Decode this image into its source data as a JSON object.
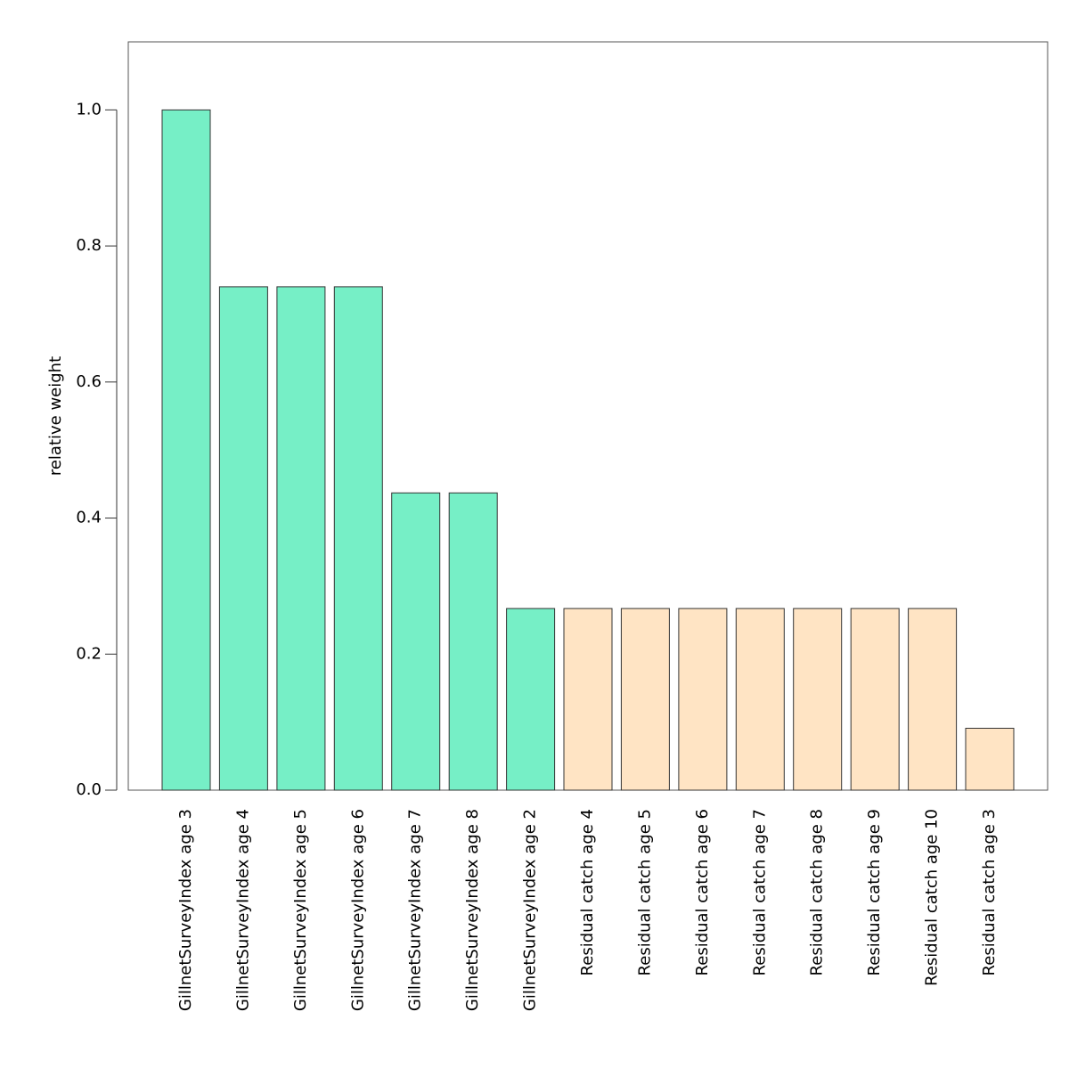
{
  "chart_data": {
    "type": "bar",
    "title": "",
    "xlabel": "",
    "ylabel": "relative weight",
    "ylim": [
      0,
      1.1
    ],
    "yticks": [
      "0.0",
      "0.2",
      "0.4",
      "0.6",
      "0.8",
      "1.0"
    ],
    "grid": false,
    "legend": "none",
    "categories": [
      "GillnetSurveyIndex age 3",
      "GillnetSurveyIndex age 4",
      "GillnetSurveyIndex age 5",
      "GillnetSurveyIndex age 6",
      "GillnetSurveyIndex age 7",
      "GillnetSurveyIndex age 8",
      "GillnetSurveyIndex age 2",
      "Residual catch age 4",
      "Residual catch age 5",
      "Residual catch age 6",
      "Residual catch age 7",
      "Residual catch age 8",
      "Residual catch age 9",
      "Residual catch age 10",
      "Residual catch age 3"
    ],
    "values": [
      1.0,
      0.74,
      0.74,
      0.74,
      0.437,
      0.437,
      0.267,
      0.267,
      0.267,
      0.267,
      0.267,
      0.267,
      0.267,
      0.267,
      0.091
    ],
    "bar_colors": [
      "#76EFC6",
      "#76EFC6",
      "#76EFC6",
      "#76EFC6",
      "#76EFC6",
      "#76EFC6",
      "#76EFC6",
      "#FFE4C4",
      "#FFE4C4",
      "#FFE4C4",
      "#FFE4C4",
      "#FFE4C4",
      "#FFE4C4",
      "#FFE4C4",
      "#FFE4C4"
    ],
    "bar_edge_color": "#333333"
  }
}
